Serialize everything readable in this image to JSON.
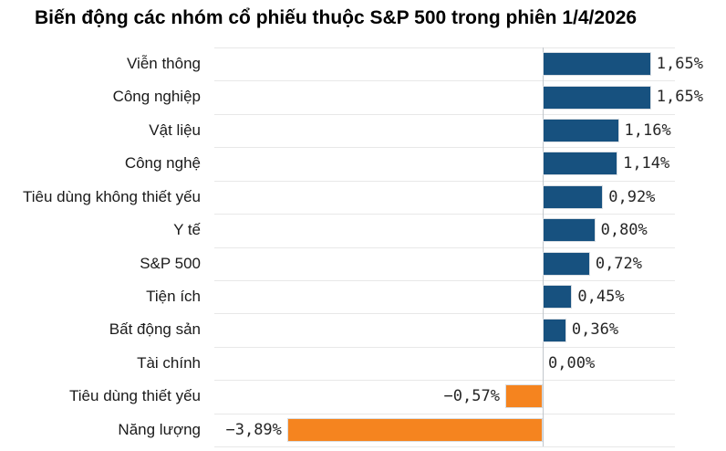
{
  "title": "Biến động các nhóm cổ phiếu thuộc S&P 500 trong phiên 1/4/2026",
  "chart_data": {
    "type": "bar",
    "orientation": "horizontal",
    "title": "Biến động các nhóm cổ phiếu thuộc S&P 500 trong phiên 1/4/2026",
    "categories": [
      "Viễn thông",
      "Công nghiệp",
      "Vật liệu",
      "Công nghệ",
      "Tiêu dùng không thiết yếu",
      "Y tế",
      "S&P 500",
      "Tiện ích",
      "Bất động sản",
      "Tài chính",
      "Tiêu dùng thiết yếu",
      "Năng lượng"
    ],
    "values": [
      1.65,
      1.65,
      1.16,
      1.14,
      0.92,
      0.8,
      0.72,
      0.45,
      0.36,
      0.0,
      -0.57,
      -3.89
    ],
    "value_labels": [
      "1,65%",
      "1,65%",
      "1,16%",
      "1,14%",
      "0,92%",
      "0,80%",
      "0,72%",
      "0,45%",
      "0,36%",
      "0,00%",
      "−0,57%",
      "−3,89%"
    ],
    "unit": "%",
    "xlim": [
      -5.0,
      2.0
    ],
    "grid": true,
    "legend": false,
    "colors": {
      "positive_bar": "#17517F",
      "negative_bar": "#F5841F",
      "gridline": "#E8E8E8",
      "zero_line": "#C2C7CC",
      "value_text": "#262626",
      "category_text": "#1A1A1A",
      "title_text": "#000000",
      "background": "#FFFFFF"
    }
  }
}
